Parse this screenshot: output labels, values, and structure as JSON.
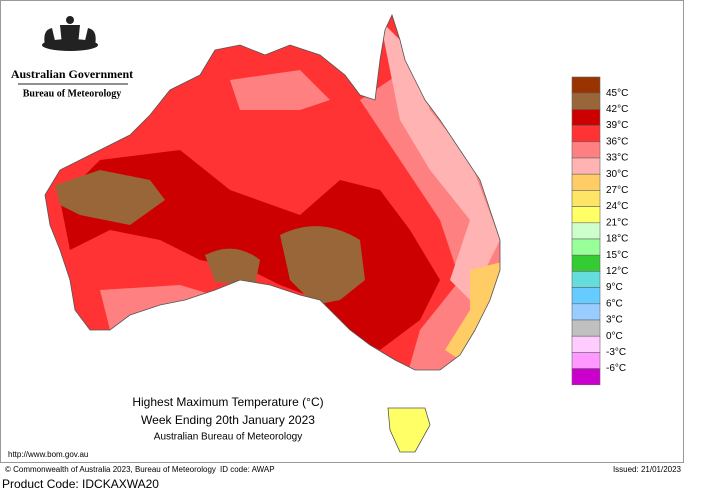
{
  "header": {
    "government": "Australian Government",
    "bureau": "Bureau of Meteorology"
  },
  "title": {
    "line1": "Highest Maximum Temperature (°C)",
    "line2": "Week Ending 20th January 2023",
    "line3": "Australian Bureau of Meteorology"
  },
  "legend": {
    "labels": [
      "45°C",
      "42°C",
      "39°C",
      "36°C",
      "33°C",
      "30°C",
      "27°C",
      "24°C",
      "21°C",
      "18°C",
      "15°C",
      "12°C",
      "9°C",
      "6°C",
      "3°C",
      "0°C",
      "-3°C",
      "-6°C"
    ],
    "colors": [
      "#993300",
      "#99663a",
      "#cc0000",
      "#ff3333",
      "#ff8080",
      "#ffb3b3",
      "#ffcc66",
      "#ffe566",
      "#ffff66",
      "#ccffcc",
      "#99ff99",
      "#33cc33",
      "#66dddd",
      "#66ccff",
      "#99ccff",
      "#c0c0c0",
      "#ffccff",
      "#ff99ff",
      "#cc00cc"
    ]
  },
  "url": "http://www.bom.gov.au",
  "footer": {
    "copyright": "© Commonwealth of Australia 2023, Bureau of Meteorology",
    "id_code": "ID code: AWAP",
    "issued": "Issued: 21/01/2023"
  },
  "product_code": "Product Code: IDCKAXWA20"
}
